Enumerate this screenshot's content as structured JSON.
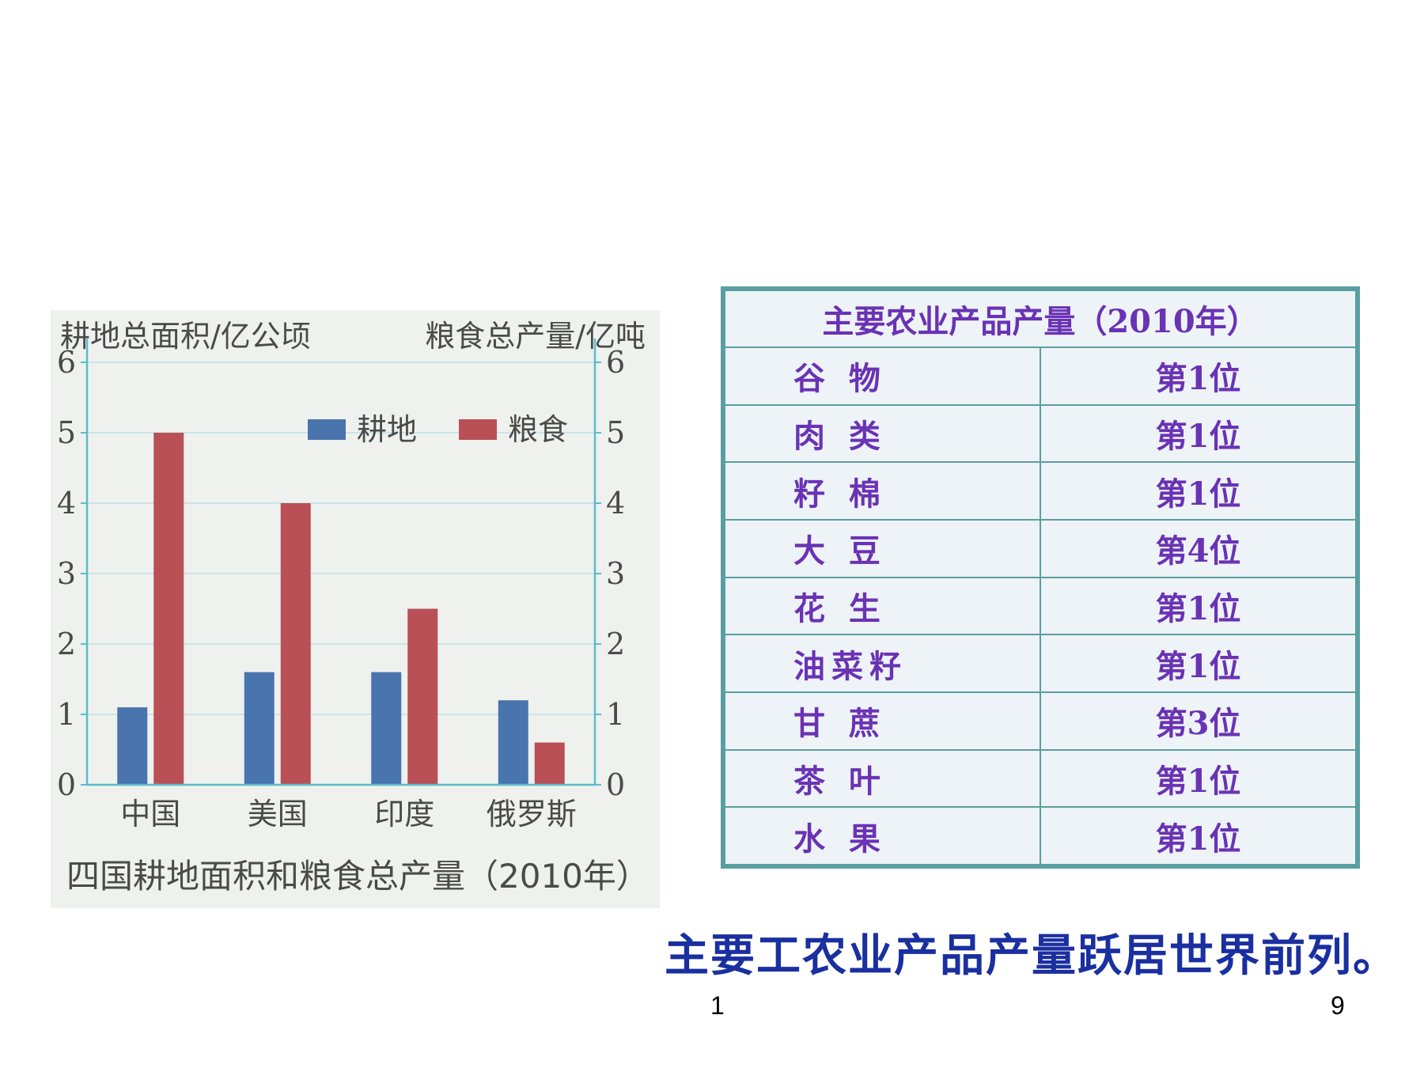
{
  "chart_data": {
    "type": "bar",
    "title": "四国耕地面积和粮食总产量（2010年）",
    "ylabel_left": "耕地总面积/亿公顷",
    "ylabel_right": "粮食总产量/亿吨",
    "categories": [
      "中国",
      "美国",
      "印度",
      "俄罗斯"
    ],
    "series": [
      {
        "name": "耕地",
        "values": [
          1.1,
          1.6,
          1.6,
          1.2
        ],
        "color": "#4a74ad"
      },
      {
        "name": "粮食",
        "values": [
          5.0,
          4.0,
          2.5,
          0.6
        ],
        "color": "#b85055"
      }
    ],
    "ylim": [
      0,
      6
    ],
    "yticks": [
      "0",
      "1",
      "2",
      "3",
      "4",
      "5",
      "6"
    ],
    "grid": true,
    "legend_position": "top-right"
  },
  "table": {
    "title": "主要农业产品产量（2010年）",
    "rows": [
      {
        "product": "谷 物",
        "rank": "第1位"
      },
      {
        "product": "肉 类",
        "rank": "第1位"
      },
      {
        "product": "籽 棉",
        "rank": "第1位"
      },
      {
        "product": "大 豆",
        "rank": "第4位"
      },
      {
        "product": "花 生",
        "rank": "第1位"
      },
      {
        "product": "油菜籽",
        "rank": "第1位"
      },
      {
        "product": "甘 蔗",
        "rank": "第3位"
      },
      {
        "product": "茶 叶",
        "rank": "第1位"
      },
      {
        "product": "水 果",
        "rank": "第1位"
      }
    ]
  },
  "summary_text": "主要工农业产品产量跃居世界前列。",
  "page_numbers": {
    "left": "1",
    "right": "9"
  }
}
